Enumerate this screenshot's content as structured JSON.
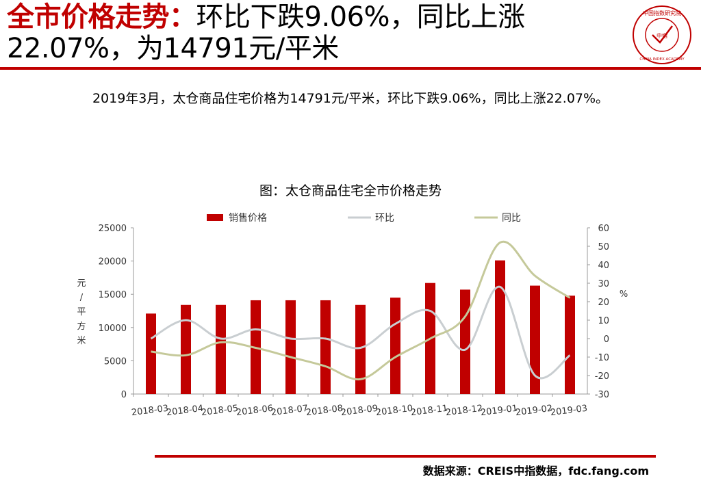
{
  "header": {
    "title_key": "全市价格走势：",
    "title_rest": "环比下跌9.06%，同比上涨22.07%，为14791元/平米"
  },
  "logo": {
    "text_top": "中国指数研究院",
    "text_center": "中指",
    "text_bottom": "CHINA INDEX ACADEMY",
    "color": "#c00000"
  },
  "summary": "2019年3月，太仓商品住宅价格为14791元/平米，环比下跌9.06%，同比上涨22.07%。",
  "source": "数据来源：CREIS中指数据，fdc.fang.com",
  "chart_data": {
    "type": "bar",
    "title": "图：太仓商品住宅全市价格走势",
    "categories": [
      "2018-03",
      "2018-04",
      "2018-05",
      "2018-06",
      "2018-07",
      "2018-08",
      "2018-09",
      "2018-10",
      "2018-11",
      "2018-12",
      "2019-01",
      "2019-02",
      "2019-03"
    ],
    "series": [
      {
        "name": "销售价格",
        "kind": "bar",
        "axis": "left",
        "color": "#c00000",
        "values": [
          12100,
          13400,
          13400,
          14100,
          14100,
          14100,
          13400,
          14500,
          16700,
          15700,
          20100,
          16300,
          14791
        ]
      },
      {
        "name": "环比",
        "kind": "line",
        "axis": "right",
        "color": "#c9ced1",
        "values": [
          0,
          10,
          0,
          5,
          0,
          0,
          -5,
          8,
          15,
          -6,
          28,
          -20,
          -9.06
        ]
      },
      {
        "name": "同比",
        "kind": "line",
        "axis": "right",
        "color": "#c5c99a",
        "values": [
          -7,
          -9,
          -2,
          -5,
          -10,
          -15,
          -22,
          -10,
          0,
          12,
          52,
          34,
          22.07
        ]
      }
    ],
    "y_left": {
      "label": "元/平方米",
      "min": 0,
      "max": 25000,
      "ticks": [
        0,
        5000,
        10000,
        15000,
        20000,
        25000
      ]
    },
    "y_right": {
      "label": "%",
      "min": -30,
      "max": 60,
      "ticks": [
        -30,
        -20,
        -10,
        0,
        10,
        20,
        30,
        40,
        50,
        60
      ]
    },
    "legend": "top",
    "grid": false
  }
}
